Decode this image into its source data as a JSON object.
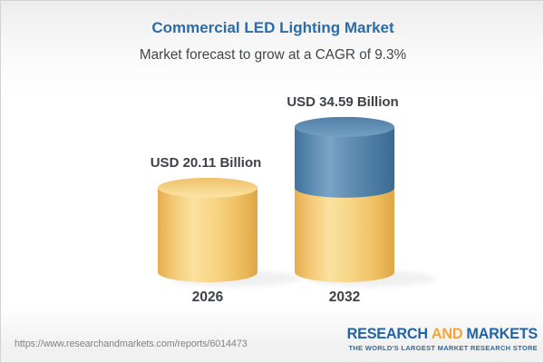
{
  "header": {
    "title": "Commercial LED Lighting Market",
    "subtitle": "Market forecast to grow at a CAGR of 9.3%"
  },
  "chart_data": {
    "type": "bar",
    "categories": [
      "2026",
      "2032"
    ],
    "values": [
      20.11,
      34.59
    ],
    "unit": "USD Billion",
    "value_labels": [
      "USD 20.11 Billion",
      "USD 34.59 Billion"
    ],
    "cagr": "9.3%",
    "colors": {
      "base_segment": "#f5ce79",
      "growth_segment": "#5788af"
    },
    "legend": null,
    "grid": false
  },
  "footer": {
    "url": "https://www.researchandmarkets.com/reports/6014473",
    "logo": {
      "research": "RESEARCH",
      "and": "AND",
      "markets": "MARKETS",
      "tagline": "THE WORLD'S LARGEST MARKET RESEARCH STORE"
    }
  }
}
